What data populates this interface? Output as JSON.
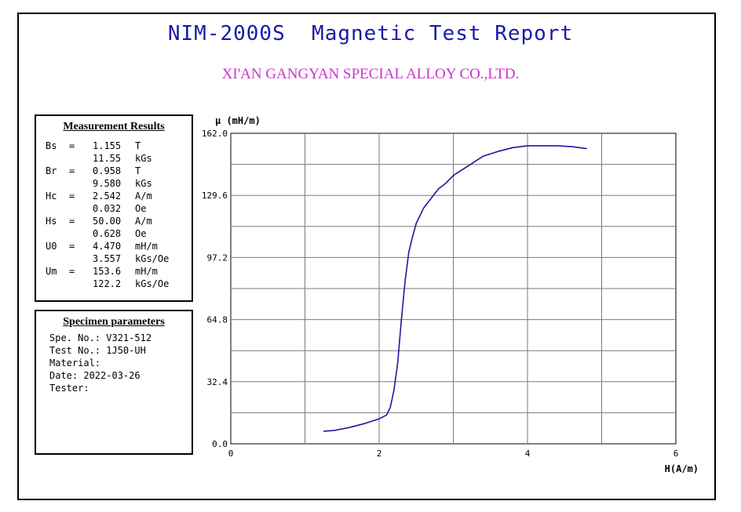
{
  "report": {
    "title": "NIM-2000S  Magnetic Test Report",
    "company": "XI'AN GANGYAN SPECIAL ALLOY CO.,LTD."
  },
  "measurement": {
    "heading": "Measurement Results",
    "rows": [
      {
        "key": "Bs",
        "eq": "=",
        "value": "1.155",
        "unit": "T"
      },
      {
        "key": "",
        "eq": "",
        "value": "11.55",
        "unit": "kGs"
      },
      {
        "key": "Br",
        "eq": "=",
        "value": "0.958",
        "unit": "T"
      },
      {
        "key": "",
        "eq": "",
        "value": "9.580",
        "unit": "kGs"
      },
      {
        "key": "Hc",
        "eq": "=",
        "value": "2.542",
        "unit": "A/m"
      },
      {
        "key": "",
        "eq": "",
        "value": "0.032",
        "unit": "Oe"
      },
      {
        "key": "Hs",
        "eq": "=",
        "value": "50.00",
        "unit": "A/m"
      },
      {
        "key": "",
        "eq": "",
        "value": "0.628",
        "unit": "Oe"
      },
      {
        "key": "U0",
        "eq": "=",
        "value": "4.470",
        "unit": "mH/m"
      },
      {
        "key": "",
        "eq": "",
        "value": "3.557",
        "unit": "kGs/Oe"
      },
      {
        "key": "Um",
        "eq": "=",
        "value": "153.6",
        "unit": "mH/m"
      },
      {
        "key": "",
        "eq": "",
        "value": "122.2",
        "unit": "kGs/Oe"
      }
    ]
  },
  "specimen": {
    "heading": "Specimen parameters",
    "lines": [
      "Spe. No.: V321-512",
      "Test No.: 1J50-UH",
      "Material:",
      "Date: 2022-03-26",
      "Tester:"
    ]
  },
  "chart_data": {
    "type": "line",
    "title": "",
    "xlabel": "H(A/m)",
    "ylabel": "μ (mH/m)",
    "xlim": [
      0,
      6
    ],
    "ylim": [
      0,
      162
    ],
    "x_ticks": [
      "0",
      "2",
      "4",
      "6"
    ],
    "y_ticks": [
      "0.0",
      "32.4",
      "64.8",
      "97.2",
      "129.6",
      "162.0"
    ],
    "grid": true,
    "line_color": "#1a1aa0",
    "series": [
      {
        "x": [
          1.25,
          1.4,
          1.6,
          1.8,
          2.0,
          2.1,
          2.15,
          2.2,
          2.25,
          2.3,
          2.35,
          2.4,
          2.45,
          2.5,
          2.6,
          2.7,
          2.8,
          2.9,
          3.0,
          3.2,
          3.4,
          3.6,
          3.8,
          4.0,
          4.2,
          4.4,
          4.6,
          4.8
        ],
        "y": [
          6.5,
          7,
          8.5,
          10.5,
          13,
          15,
          19,
          28,
          42,
          65,
          85,
          100,
          108,
          115,
          123,
          128,
          133,
          136,
          140,
          145,
          150,
          152.5,
          154.5,
          155.5,
          155.5,
          155.5,
          155,
          154
        ]
      }
    ]
  }
}
